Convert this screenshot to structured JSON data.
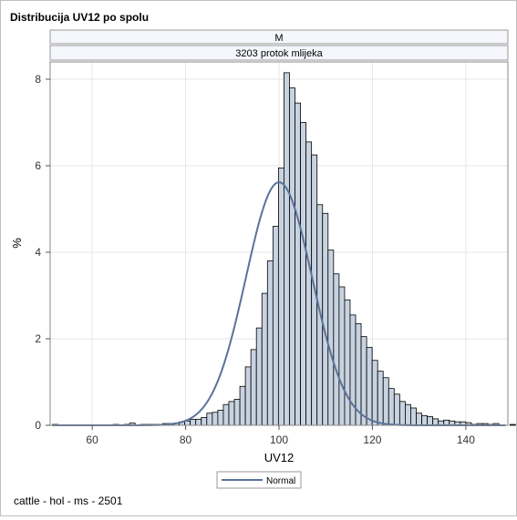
{
  "footnote": "cattle - hol - ms - 2501",
  "chart_data": {
    "type": "bar",
    "subtype": "histogram with fitted normal curve",
    "title": "Distribucija UV12 po spolu",
    "panel_headers": [
      "M",
      "3203 protok mlijeka"
    ],
    "xlabel": "UV12",
    "ylabel": "%",
    "xlim": [
      51,
      149
    ],
    "ylim": [
      0,
      8.4
    ],
    "xticks": [
      60,
      80,
      100,
      120,
      140
    ],
    "yticks": [
      0,
      2,
      4,
      6,
      8
    ],
    "grid": true,
    "legend": {
      "position": "bottom-center",
      "entries": [
        "Normal"
      ]
    },
    "bin_width": 1.18,
    "bin_start": 51.5,
    "values": [
      0.02,
      0.0,
      0.0,
      0.0,
      0.0,
      0.0,
      0.0,
      0.0,
      0.0,
      0.0,
      0.0,
      0.02,
      0.0,
      0.02,
      0.05,
      0.0,
      0.02,
      0.02,
      0.02,
      0.02,
      0.04,
      0.04,
      0.05,
      0.08,
      0.1,
      0.14,
      0.14,
      0.18,
      0.28,
      0.3,
      0.35,
      0.48,
      0.55,
      0.6,
      0.9,
      1.35,
      1.75,
      2.25,
      3.05,
      3.8,
      4.6,
      5.95,
      8.15,
      7.8,
      7.45,
      7.0,
      6.55,
      6.25,
      5.1,
      4.9,
      4.05,
      3.5,
      3.2,
      2.9,
      2.55,
      2.35,
      2.05,
      1.8,
      1.5,
      1.25,
      1.1,
      0.85,
      0.72,
      0.55,
      0.48,
      0.4,
      0.28,
      0.22,
      0.2,
      0.15,
      0.1,
      0.12,
      0.1,
      0.08,
      0.08,
      0.06,
      0.02,
      0.04,
      0.04,
      0.02,
      0.04,
      0.0,
      0.0,
      0.02,
      0.0,
      0.02,
      0.02,
      0.0,
      0.0,
      0.0,
      0.04,
      0.15
    ],
    "normal": {
      "name": "Normal",
      "mean": 100,
      "sd": 7.1,
      "color": "#5a7399"
    },
    "bar_fill": "#c7d3e0",
    "bar_edge": "#000000"
  }
}
